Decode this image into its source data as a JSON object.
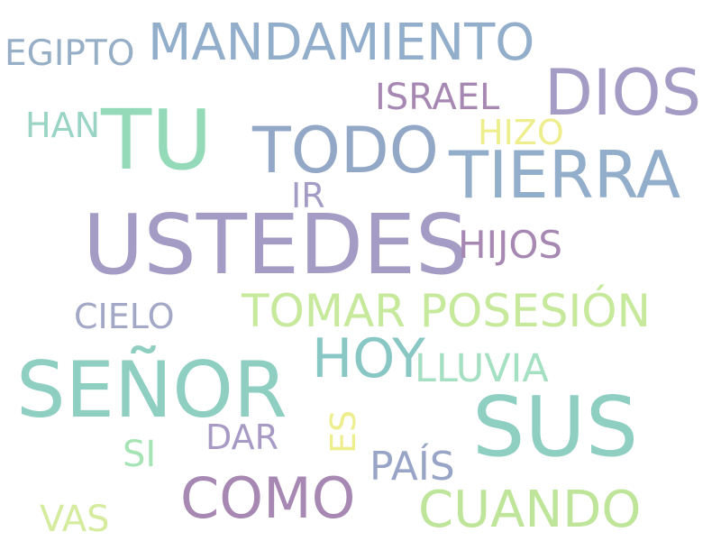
{
  "image_type": "word cloud",
  "words": {
    "ustedes": {
      "text": "USTEDES",
      "color": "#A49CC5"
    },
    "senor": {
      "text": "SEÑOR",
      "color": "#8ECFC1"
    },
    "sus": {
      "text": "SUS",
      "color": "#8ECFC1"
    },
    "tu": {
      "text": "TU",
      "color": "#94D9B8"
    },
    "dios": {
      "text": "DIOS",
      "color": "#A49CC5"
    },
    "tierra": {
      "text": "TIERRA",
      "color": "#92AECB"
    },
    "todo": {
      "text": "TODO",
      "color": "#92A8C6"
    },
    "mandamiento": {
      "text": "MANDAMIENTO",
      "color": "#92AECB"
    },
    "como": {
      "text": "COMO",
      "color": "#A688B2"
    },
    "cuando": {
      "text": "CUANDO",
      "color": "#BFE59A"
    },
    "hoy": {
      "text": "HOY",
      "color": "#89C7C4"
    },
    "tomar_posesion": {
      "text": "TOMAR POSESIÓN",
      "color": "#C6E99C"
    },
    "egipto": {
      "text": "EGIPTO",
      "color": "#97AEC7"
    },
    "israel": {
      "text": "ISRAEL",
      "color": "#A688B2"
    },
    "hijos": {
      "text": "HIJOS",
      "color": "#A688B2"
    },
    "lluvia": {
      "text": "LLUVIA",
      "color": "#A6E0C3"
    },
    "cielo": {
      "text": "CIELO",
      "color": "#A2A8C6"
    },
    "han": {
      "text": "HAN",
      "color": "#99D4C4"
    },
    "hizo": {
      "text": "HIZO",
      "color": "#EEEE8E"
    },
    "ir": {
      "text": "IR",
      "color": "#A49CC5"
    },
    "pais": {
      "text": "PAÍS",
      "color": "#98A5C6"
    },
    "dar": {
      "text": "DAR",
      "color": "#A79BC5"
    },
    "si": {
      "text": "SI",
      "color": "#A6E4B5"
    },
    "vas": {
      "text": "VAS",
      "color": "#D5EB9E"
    },
    "es": {
      "text": "ES",
      "color": "#EEEE8E"
    }
  }
}
